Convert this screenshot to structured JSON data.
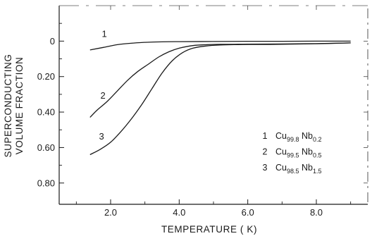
{
  "chart_data": {
    "type": "line",
    "xlabel": "TEMPERATURE ( K)",
    "ylabel_line1": "SUPERCONDUCTING",
    "ylabel_line2": "VOLUME FRACTION",
    "xlim": [
      0.5,
      9.5
    ],
    "ylim": [
      -0.2,
      0.92
    ],
    "y_inverted": true,
    "x_ticks": [
      2.0,
      4.0,
      6.0,
      8.0
    ],
    "x_tick_labels": [
      "2.0",
      "4.0",
      "6.0",
      "8.0"
    ],
    "x_minor_ticks": [
      1.0,
      3.0,
      5.0,
      7.0,
      9.0
    ],
    "y_ticks": [
      0,
      0.2,
      0.4,
      0.6,
      0.8
    ],
    "y_tick_labels": [
      "0",
      "0.20",
      "0.40",
      "0.60",
      "0.80"
    ],
    "grid": false,
    "legend_position": "right",
    "series": [
      {
        "id": "1",
        "label": "1",
        "legend": {
          "num": "1",
          "base": "Cu",
          "cu_sub": "99.8",
          "mid": "Nb",
          "nb_sub": "0.2"
        },
        "x": [
          1.4,
          1.8,
          2.2,
          2.6,
          3.0,
          3.5,
          4.0,
          5.0,
          6.0,
          7.0,
          8.0,
          9.0
        ],
        "y": [
          0.05,
          0.035,
          0.02,
          0.012,
          0.007,
          0.004,
          0.003,
          0.002,
          0.001,
          0.001,
          0.0,
          0.0
        ]
      },
      {
        "id": "2",
        "label": "2",
        "legend": {
          "num": "2",
          "base": "Cu",
          "cu_sub": "99.5",
          "mid": "Nb",
          "nb_sub": "0.5"
        },
        "x": [
          1.4,
          1.6,
          1.9,
          2.2,
          2.5,
          2.8,
          3.1,
          3.4,
          3.7,
          4.0,
          4.4,
          4.8,
          5.2,
          5.6,
          6.0,
          7.0,
          8.0,
          9.0
        ],
        "y": [
          0.43,
          0.39,
          0.34,
          0.28,
          0.22,
          0.17,
          0.13,
          0.09,
          0.06,
          0.04,
          0.025,
          0.02,
          0.018,
          0.018,
          0.017,
          0.016,
          0.014,
          0.01
        ]
      },
      {
        "id": "3",
        "label": "3",
        "legend": {
          "num": "3",
          "base": "Cu",
          "cu_sub": "98.5",
          "mid": "Nb",
          "nb_sub": "1.5"
        },
        "x": [
          1.4,
          1.7,
          2.0,
          2.3,
          2.6,
          2.9,
          3.2,
          3.5,
          3.8,
          4.1,
          4.4,
          4.8,
          5.2,
          5.6,
          6.0,
          7.0,
          8.0,
          9.0
        ],
        "y": [
          0.64,
          0.61,
          0.57,
          0.51,
          0.44,
          0.36,
          0.27,
          0.18,
          0.11,
          0.065,
          0.04,
          0.027,
          0.022,
          0.02,
          0.019,
          0.018,
          0.015,
          0.01
        ]
      }
    ]
  }
}
